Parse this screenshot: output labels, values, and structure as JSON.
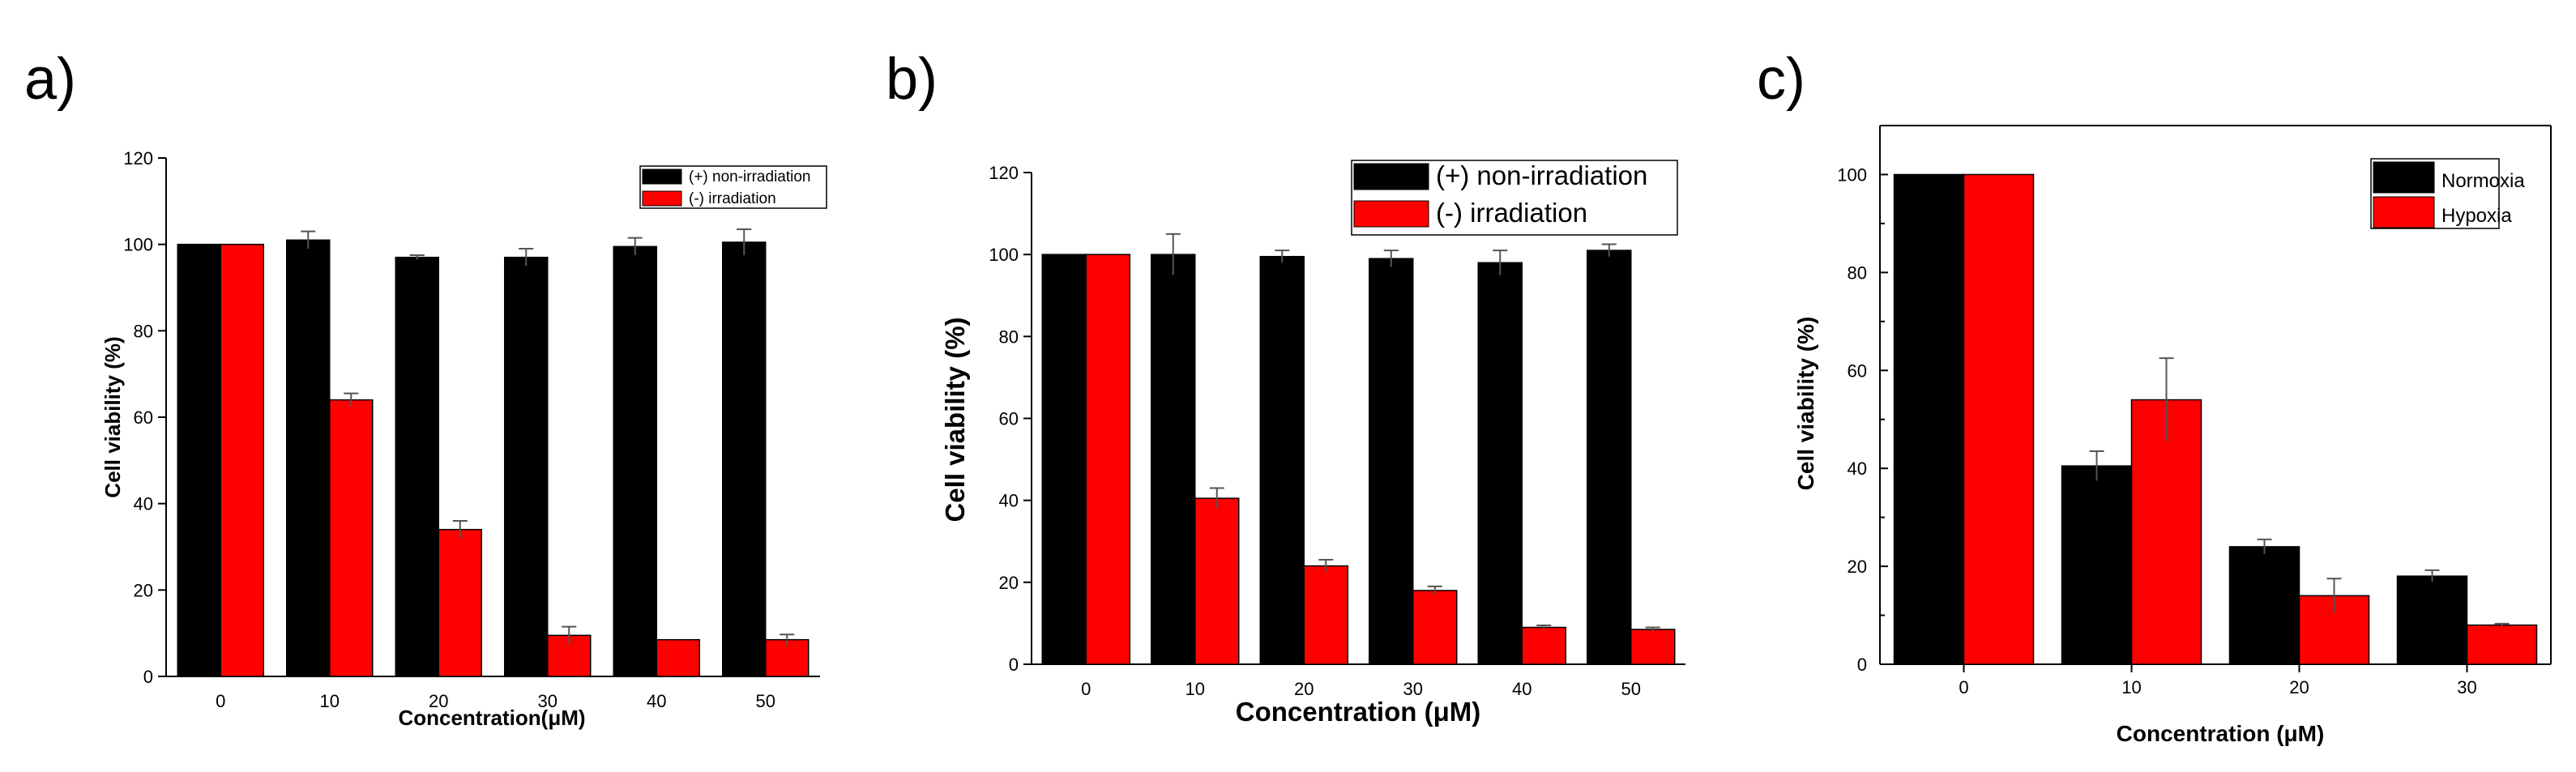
{
  "chart_data": [
    {
      "type": "bar",
      "panel_label": "a)",
      "title": "",
      "xlabel": "Concentration(μM)",
      "ylabel": "Cell viability (%)",
      "ylim": [
        0,
        120
      ],
      "y_ticks": [
        0,
        20,
        40,
        60,
        80,
        100,
        120
      ],
      "categories": [
        "0",
        "10",
        "20",
        "30",
        "40",
        "50"
      ],
      "series": [
        {
          "name": "(+) non-irradiation",
          "color": "#000000",
          "values": [
            100,
            101,
            97,
            97,
            99.5,
            100.5
          ],
          "errors": [
            0,
            2,
            0.5,
            2,
            2,
            3
          ]
        },
        {
          "name": "(-)  irradiation",
          "color": "#ff0000",
          "values": [
            100,
            64,
            34,
            9.5,
            8.5,
            8.5
          ],
          "errors": [
            0,
            1.5,
            2,
            2,
            0,
            1.2
          ]
        }
      ],
      "legend_position": "top-right"
    },
    {
      "type": "bar",
      "panel_label": "b)",
      "title": "",
      "xlabel": "Concentration (μM)",
      "ylabel": "Cell viability (%)",
      "ylim": [
        0,
        120
      ],
      "y_ticks": [
        0,
        20,
        40,
        60,
        80,
        100,
        120
      ],
      "categories": [
        "0",
        "10",
        "20",
        "30",
        "40",
        "50"
      ],
      "series": [
        {
          "name": "(+) non-irradiation",
          "color": "#000000",
          "values": [
            100,
            100,
            99.5,
            99,
            98,
            101
          ],
          "errors": [
            0,
            5,
            1.5,
            2,
            3,
            1.5
          ]
        },
        {
          "name": "(-)  irradiation",
          "color": "#ff0000",
          "values": [
            100,
            40.5,
            24,
            18,
            9,
            8.5
          ],
          "errors": [
            0,
            2.5,
            1.5,
            1,
            0.5,
            0.5
          ]
        }
      ],
      "legend_position": "top-right"
    },
    {
      "type": "bar",
      "panel_label": "c)",
      "title": "",
      "xlabel": "Concentration (μM)",
      "ylabel": "Cell viability (%)",
      "ylim": [
        0,
        110
      ],
      "y_ticks": [
        0,
        20,
        40,
        60,
        80,
        100
      ],
      "categories": [
        "0",
        "10",
        "20",
        "30"
      ],
      "series": [
        {
          "name": "Normoxia",
          "color": "#000000",
          "values": [
            100,
            40.5,
            24,
            18
          ],
          "errors": [
            0,
            3,
            1.5,
            1.2
          ]
        },
        {
          "name": "Hypoxia",
          "color": "#ff0000",
          "values": [
            100,
            54,
            14,
            8
          ],
          "errors": [
            0,
            8.5,
            3.5,
            0.3
          ]
        }
      ],
      "legend_position": "top-right"
    }
  ]
}
